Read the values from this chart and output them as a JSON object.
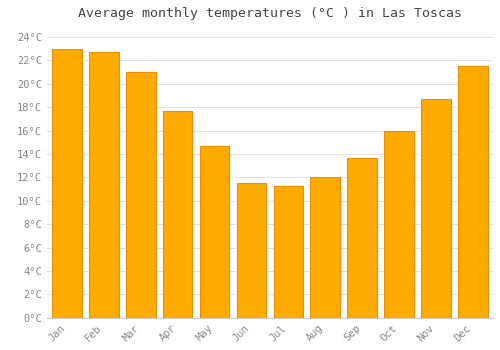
{
  "title": "Average monthly temperatures (°C ) in Las Toscas",
  "months": [
    "Jan",
    "Feb",
    "Mar",
    "Apr",
    "May",
    "Jun",
    "Jul",
    "Aug",
    "Sep",
    "Oct",
    "Nov",
    "Dec"
  ],
  "values": [
    23.0,
    22.7,
    21.0,
    17.7,
    14.7,
    11.5,
    11.3,
    12.0,
    13.7,
    16.0,
    18.7,
    21.5
  ],
  "bar_color": "#FFAA00",
  "bar_edge_color": "#E89000",
  "ylim": [
    0,
    25
  ],
  "yticks": [
    0,
    2,
    4,
    6,
    8,
    10,
    12,
    14,
    16,
    18,
    20,
    22,
    24
  ],
  "ytick_labels": [
    "0°C",
    "2°C",
    "4°C",
    "6°C",
    "8°C",
    "10°C",
    "12°C",
    "14°C",
    "16°C",
    "18°C",
    "20°C",
    "22°C",
    "24°C"
  ],
  "background_color": "#ffffff",
  "grid_color": "#e0e0e0",
  "title_fontsize": 9.5,
  "tick_fontsize": 7.5,
  "bar_width": 0.8,
  "title_color": "#444444",
  "tick_color": "#888888",
  "font_family": "monospace"
}
